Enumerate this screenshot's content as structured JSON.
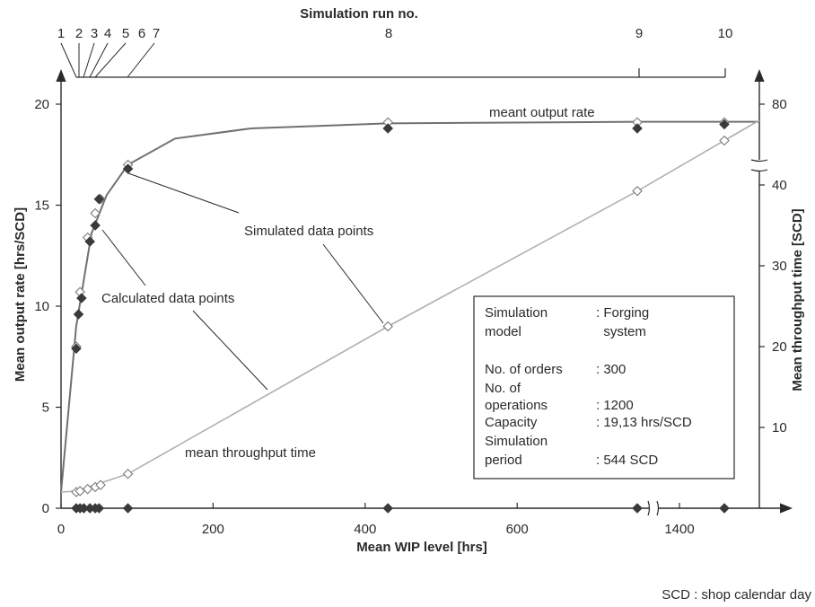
{
  "chart_data": {
    "type": "line",
    "title": "",
    "top_axis": {
      "label": "Simulation run no.",
      "runs": [
        {
          "label": "1",
          "wip": 20
        },
        {
          "label": "2",
          "wip": 25
        },
        {
          "label": "3",
          "wip": 35
        },
        {
          "label": "4",
          "wip": 45
        },
        {
          "label": "5",
          "wip": 52
        },
        {
          "label": "6",
          "wip": 88
        },
        {
          "label": "7",
          "wip": 88
        },
        {
          "label": "8",
          "wip": 430
        },
        {
          "label": "9",
          "wip": 1330
        },
        {
          "label": "10",
          "wip": 1660
        }
      ]
    },
    "xlabel": "Mean WIP level [hrs]",
    "ylabel": "Mean output rate [hrs/SCD]",
    "y2label": "Mean throughput time [SCD]",
    "x_ticks": [
      "0",
      "200",
      "400",
      "600",
      "1400"
    ],
    "y_ticks": [
      "0",
      "5",
      "10",
      "15",
      "20"
    ],
    "y2_ticks": [
      "10",
      "20",
      "30",
      "40",
      "80"
    ],
    "ylim": [
      0,
      20
    ],
    "y2_scale_note": "axis broken between 40 and 80",
    "x_scale_note": "axis broken between 600 and 1400",
    "grid": false,
    "series": [
      {
        "name": "meant output rate",
        "kind": "calculated-curve",
        "axis": "left",
        "x": [
          0,
          20,
          40,
          60,
          88,
          150,
          250,
          430,
          1330,
          1660
        ],
        "y": [
          0.8,
          9.0,
          13.6,
          15.5,
          17.0,
          18.3,
          18.8,
          19.05,
          19.13,
          19.13
        ]
      },
      {
        "name": "Calculated data points",
        "kind": "open-marker",
        "axis": "left",
        "x": [
          20,
          25,
          35,
          45,
          52,
          88,
          430,
          1330,
          1660
        ],
        "y": [
          8.0,
          10.7,
          13.4,
          14.6,
          15.3,
          17.0,
          19.1,
          19.1,
          19.1
        ]
      },
      {
        "name": "Simulated data points",
        "kind": "filled-marker",
        "axis": "left",
        "x": [
          20,
          23,
          27,
          38,
          45,
          50,
          88,
          430,
          1330,
          1660
        ],
        "y": [
          7.9,
          9.6,
          10.4,
          13.2,
          14.0,
          15.3,
          16.8,
          18.8,
          18.8,
          19.0
        ]
      },
      {
        "name": "mean throughput time",
        "kind": "line",
        "axis": "right",
        "x": [
          0,
          20,
          88,
          430,
          1330,
          1660
        ],
        "y": [
          0.8,
          0.85,
          1.7,
          9.0,
          15.7,
          18.2
        ]
      },
      {
        "name": "mean throughput time (points)",
        "kind": "open-marker",
        "axis": "right",
        "x": [
          20,
          25,
          35,
          45,
          52,
          88,
          430,
          1330,
          1660
        ],
        "y": [
          0.8,
          0.85,
          0.95,
          1.05,
          1.15,
          1.7,
          9.0,
          15.7,
          18.2
        ]
      },
      {
        "name": "WIP level markers",
        "kind": "filled-marker",
        "axis": "bottom",
        "x": [
          20,
          25,
          30,
          38,
          45,
          50,
          88,
          430,
          1330,
          1660
        ],
        "y": [
          0,
          0,
          0,
          0,
          0,
          0,
          0,
          0,
          0,
          0
        ]
      }
    ],
    "annotations": [
      {
        "id": "meant",
        "text": "meant output rate"
      },
      {
        "id": "simulated",
        "text": "Simulated data points"
      },
      {
        "id": "calculated",
        "text": "Calculated data points"
      },
      {
        "id": "throughput",
        "text": "mean throughput time"
      }
    ],
    "legend_box": {
      "placement": "bottom-right",
      "rows": [
        {
          "label": "Simulation",
          "value": ": Forging"
        },
        {
          "label": "model",
          "value": "  system"
        },
        {
          "label": "",
          "value": ""
        },
        {
          "label": "No. of orders",
          "value": ": 300"
        },
        {
          "label": "No. of",
          "value": ""
        },
        {
          "label": "operations",
          "value": ": 1200"
        },
        {
          "label": "Capacity",
          "value": ": 19,13 hrs/SCD"
        },
        {
          "label": "Simulation",
          "value": ""
        },
        {
          "label": "period",
          "value": ": 544 SCD"
        }
      ]
    },
    "footnote": "SCD : shop calendar day"
  }
}
